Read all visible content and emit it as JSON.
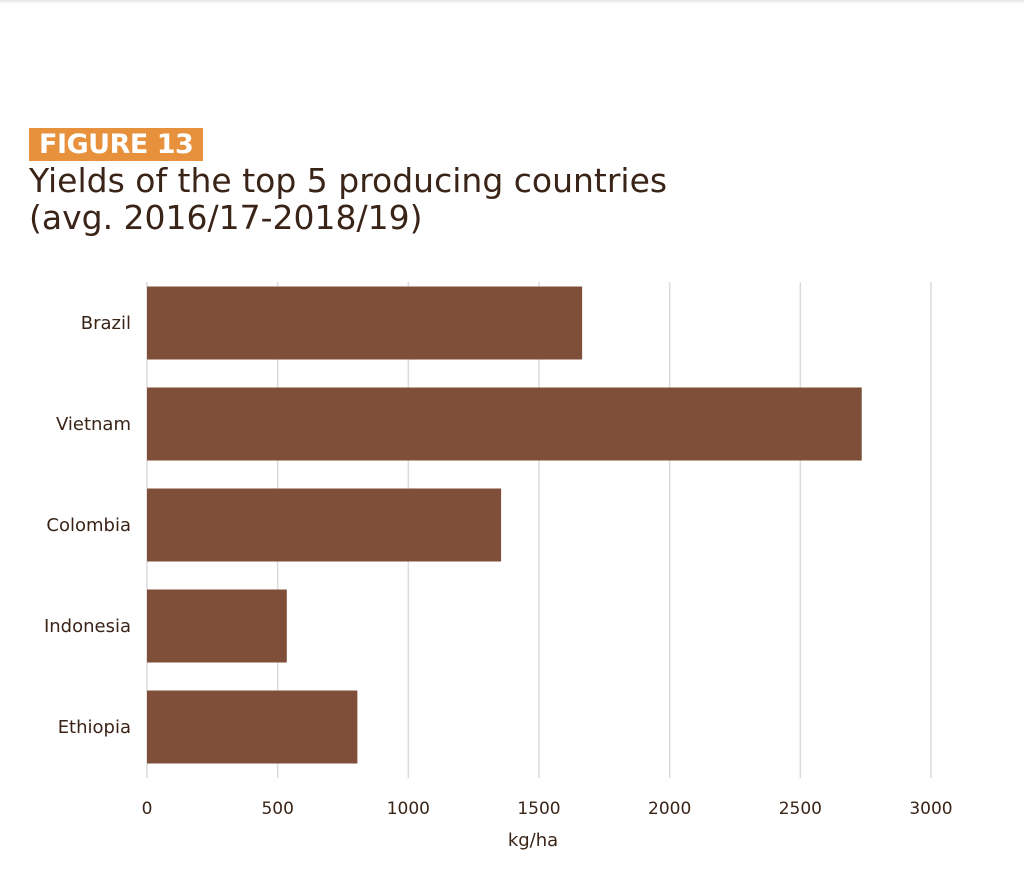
{
  "figure_label": "FIGURE 13",
  "title_lines": [
    "Yields of the top 5 producing countries",
    "(avg. 2016/17-2018/19)"
  ],
  "colors": {
    "bar": "#7f4f3a",
    "badge": "#e8913c",
    "grid": "#dcdcdc",
    "text": "#3a2418"
  },
  "chart_data": {
    "type": "bar",
    "orientation": "horizontal",
    "categories": [
      "Brazil",
      "Vietnam",
      "Colombia",
      "Indonesia",
      "Ethiopia"
    ],
    "values": [
      1665,
      2735,
      1355,
      535,
      805
    ],
    "xlabel": "kg/ha",
    "ylabel": "",
    "xlim": [
      0,
      3000
    ],
    "xticks": [
      0,
      500,
      1000,
      1500,
      2000,
      2500,
      3000
    ],
    "grid": "vertical"
  }
}
